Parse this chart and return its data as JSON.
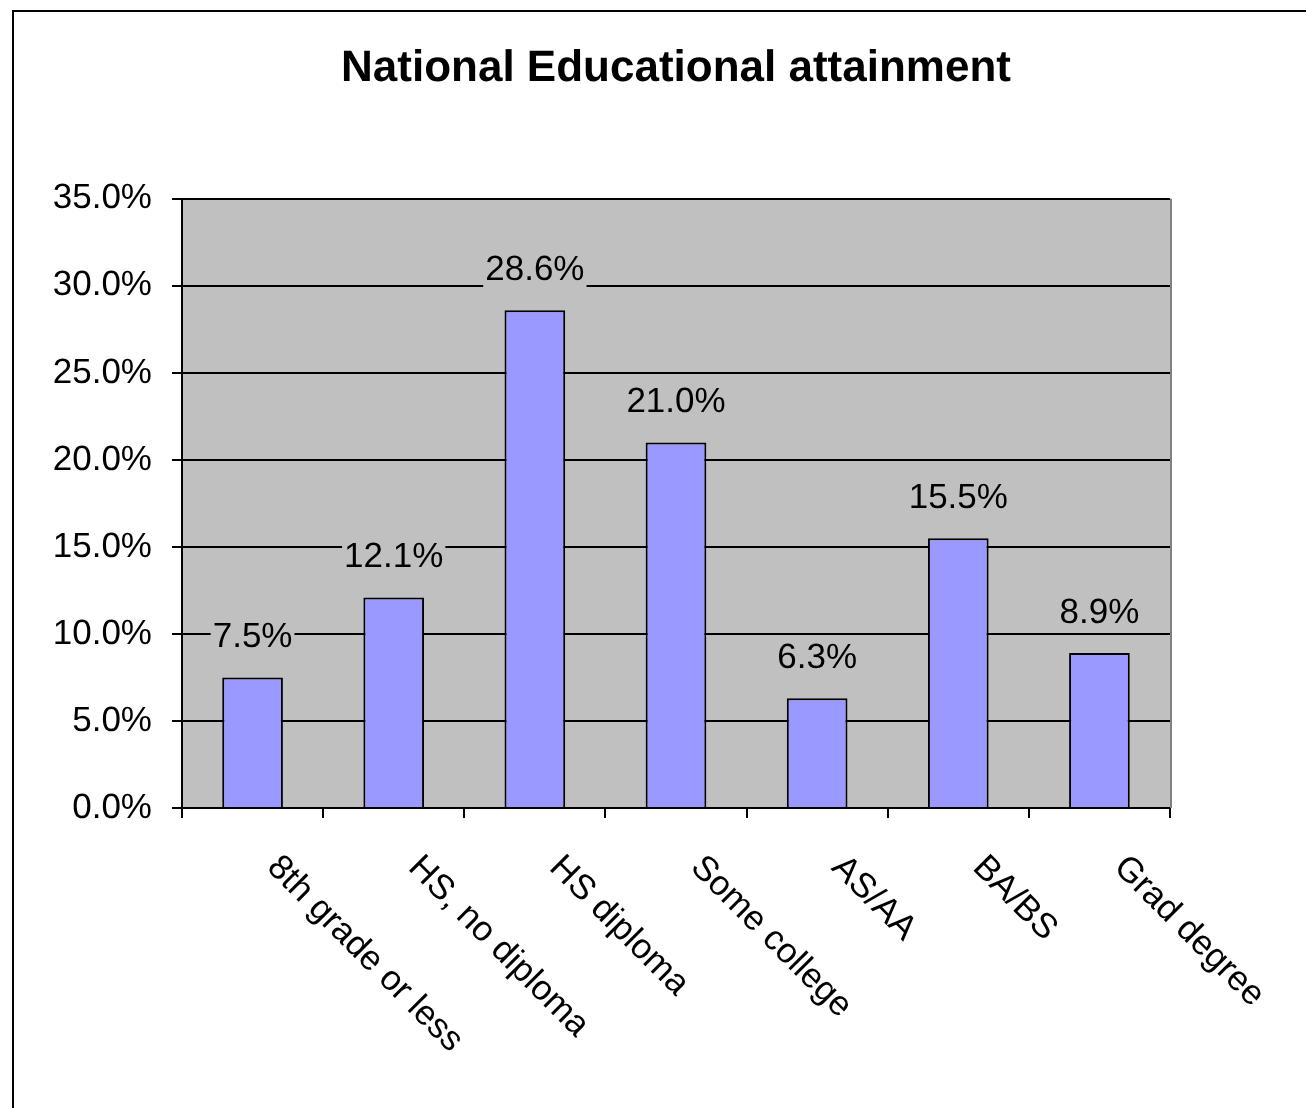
{
  "chart_data": {
    "type": "bar",
    "title": "National Educational attainment",
    "categories": [
      "8th grade or less",
      "HS, no diploma",
      "HS diploma",
      "Some college",
      "AS/AA",
      "BA/BS",
      "Grad degree"
    ],
    "values": [
      7.5,
      12.1,
      28.6,
      21.0,
      6.3,
      15.5,
      8.9
    ],
    "value_labels": [
      "7.5%",
      "12.1%",
      "28.6%",
      "21.0%",
      "6.3%",
      "15.5%",
      "8.9%"
    ],
    "color": "#9999ff",
    "ylim": [
      0,
      35
    ],
    "yticks": [
      {
        "value": 0,
        "label": "0.0%"
      },
      {
        "value": 5,
        "label": "5.0%"
      },
      {
        "value": 10,
        "label": "10.0%"
      },
      {
        "value": 15,
        "label": "15.0%"
      },
      {
        "value": 20,
        "label": "20.0%"
      },
      {
        "value": 25,
        "label": "25.0%"
      },
      {
        "value": 30,
        "label": "30.0%"
      },
      {
        "value": 35,
        "label": "35.0%"
      }
    ],
    "grid": "y",
    "legend": false
  }
}
